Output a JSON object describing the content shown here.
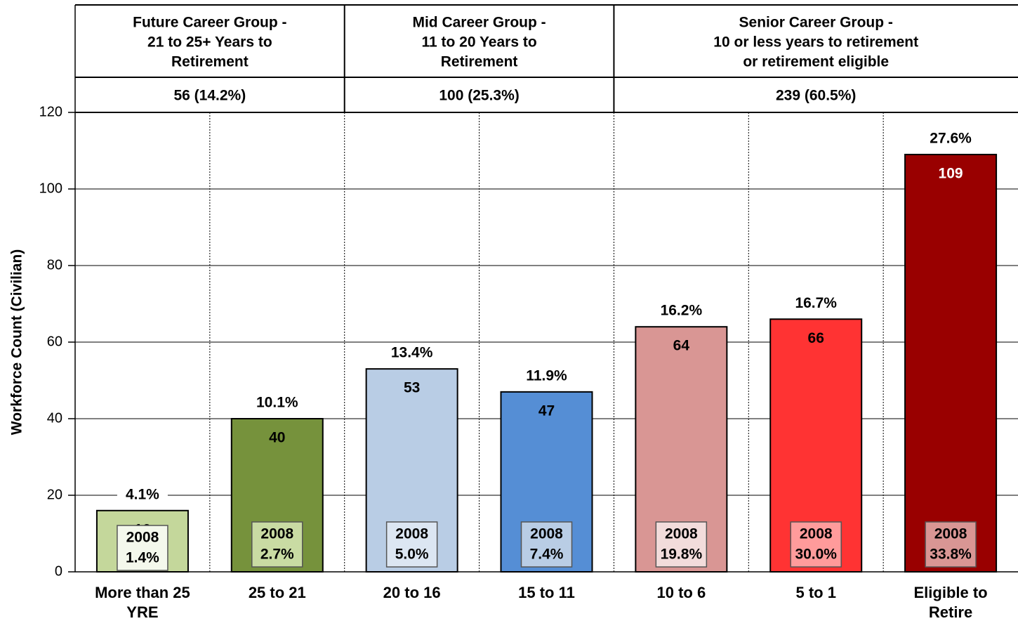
{
  "chart_data": {
    "type": "bar",
    "y_label": "Workforce Count (Civilian)",
    "categories": [
      "More than 25 YRE",
      "25 to 21",
      "20 to 16",
      "15 to 11",
      "10 to 6",
      "5 to 1",
      "Eligible to Retire"
    ],
    "values": [
      16,
      40,
      53,
      47,
      64,
      66,
      109
    ],
    "colors": [
      "#c4d79b",
      "#76923c",
      "#b9cde5",
      "#558ed5",
      "#d99694",
      "#ff3333",
      "#990000"
    ],
    "value_text_colors": [
      "#000000",
      "#000000",
      "#000000",
      "#000000",
      "#000000",
      "#000000",
      "#ffffff"
    ],
    "percent_labels": [
      "4.1%",
      "10.1%",
      "13.4%",
      "11.9%",
      "16.2%",
      "16.7%",
      "27.6%"
    ],
    "comparison_labels": [
      {
        "year": "2008",
        "percent": "1.4%"
      },
      {
        "year": "2008",
        "percent": "2.7%"
      },
      {
        "year": "2008",
        "percent": "5.0%"
      },
      {
        "year": "2008",
        "percent": "7.4%"
      },
      {
        "year": "2008",
        "percent": "19.8%"
      },
      {
        "year": "2008",
        "percent": "30.0%"
      },
      {
        "year": "2008",
        "percent": "33.8%"
      }
    ],
    "comparison_box_colors": [
      "#f4f8ec",
      "#c9dba3",
      "#dce6f2",
      "#b9cde5",
      "#f2dcdb",
      "#ff9b9b",
      "#d99694"
    ],
    "groups": [
      {
        "title": [
          "Future Career Group -",
          "21 to 25+ Years to",
          "Retirement"
        ],
        "summary": "56 (14.2%)",
        "span": 2
      },
      {
        "title": [
          "Mid Career Group -",
          "11 to 20 Years to",
          "Retirement"
        ],
        "summary": "100 (25.3%)",
        "span": 2
      },
      {
        "title": [
          "Senior Career Group -",
          "10 or less years to retirement",
          "or retirement eligible"
        ],
        "summary": "239 (60.5%)",
        "span": 3
      }
    ],
    "ylim": [
      0,
      120
    ],
    "yticks": [
      0,
      20,
      40,
      60,
      80,
      100,
      120
    ],
    "grid": true
  }
}
